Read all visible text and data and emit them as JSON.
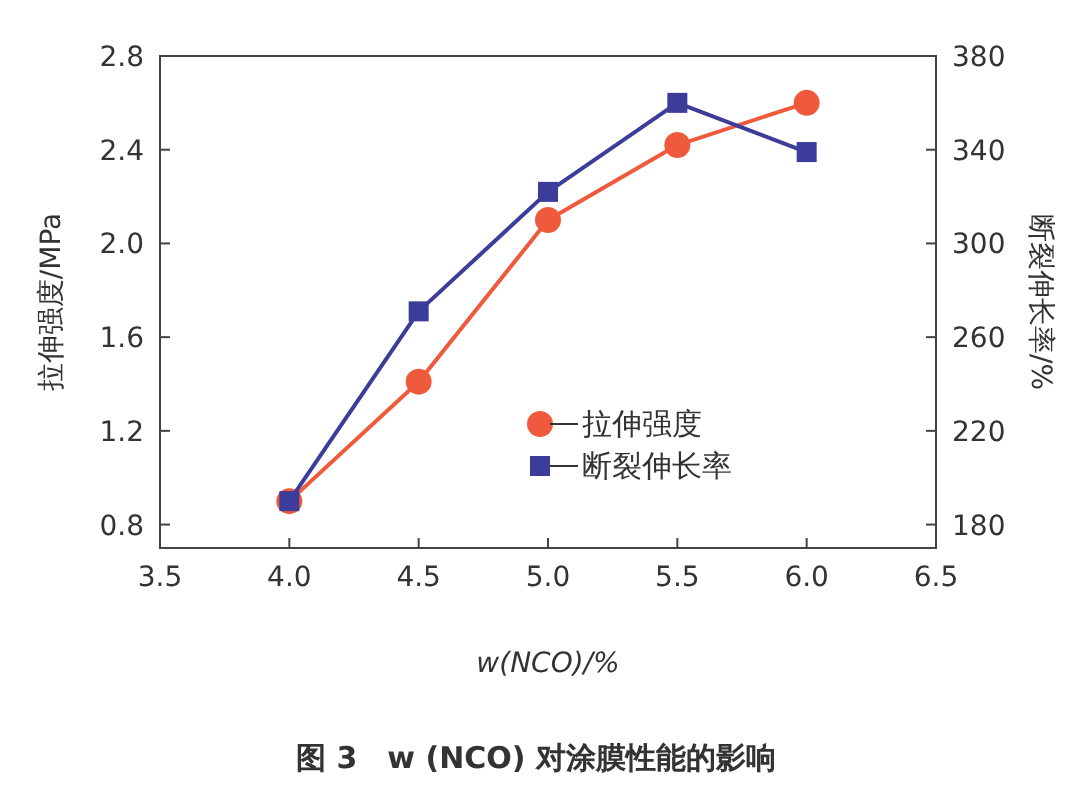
{
  "chart_data": {
    "type": "line",
    "xlabel": "w(NCO)/%",
    "ylabel": "拉伸强度/MPa",
    "y2label": "断裂伸长率/%",
    "annotations": [
      "图 3　w (NCO) 对涂膜性能的影响"
    ],
    "x": [
      4.0,
      4.5,
      5.0,
      5.5,
      6.0
    ],
    "series": [
      {
        "name": "拉伸强度",
        "color": "#f05a3c",
        "marker": "circle",
        "values": [
          0.9,
          1.41,
          2.1,
          2.42,
          2.6
        ]
      },
      {
        "name": "断裂伸长率",
        "color": "#3c3c9a",
        "marker": "square",
        "axis": "y2",
        "values": [
          190,
          271,
          322,
          360,
          339
        ]
      }
    ],
    "xlim": [
      3.5,
      6.5
    ],
    "xticks": [
      3.5,
      {
        "value": 4,
        "label": "4.0"
      },
      4.5,
      {
        "value": 5,
        "label": "5.0"
      },
      5.5,
      {
        "value": 6,
        "label": "6.0"
      },
      6.5
    ],
    "ylim": [
      0.7,
      2.8
    ],
    "yticks": [
      0.8,
      1.2,
      1.6,
      {
        "value": 2,
        "label": "2.0"
      },
      2.4,
      2.8
    ],
    "y2lim": [
      170,
      380
    ],
    "y2ticks": [
      180,
      220,
      260,
      300,
      340,
      380
    ],
    "grid": false,
    "legend": "bottom right"
  }
}
